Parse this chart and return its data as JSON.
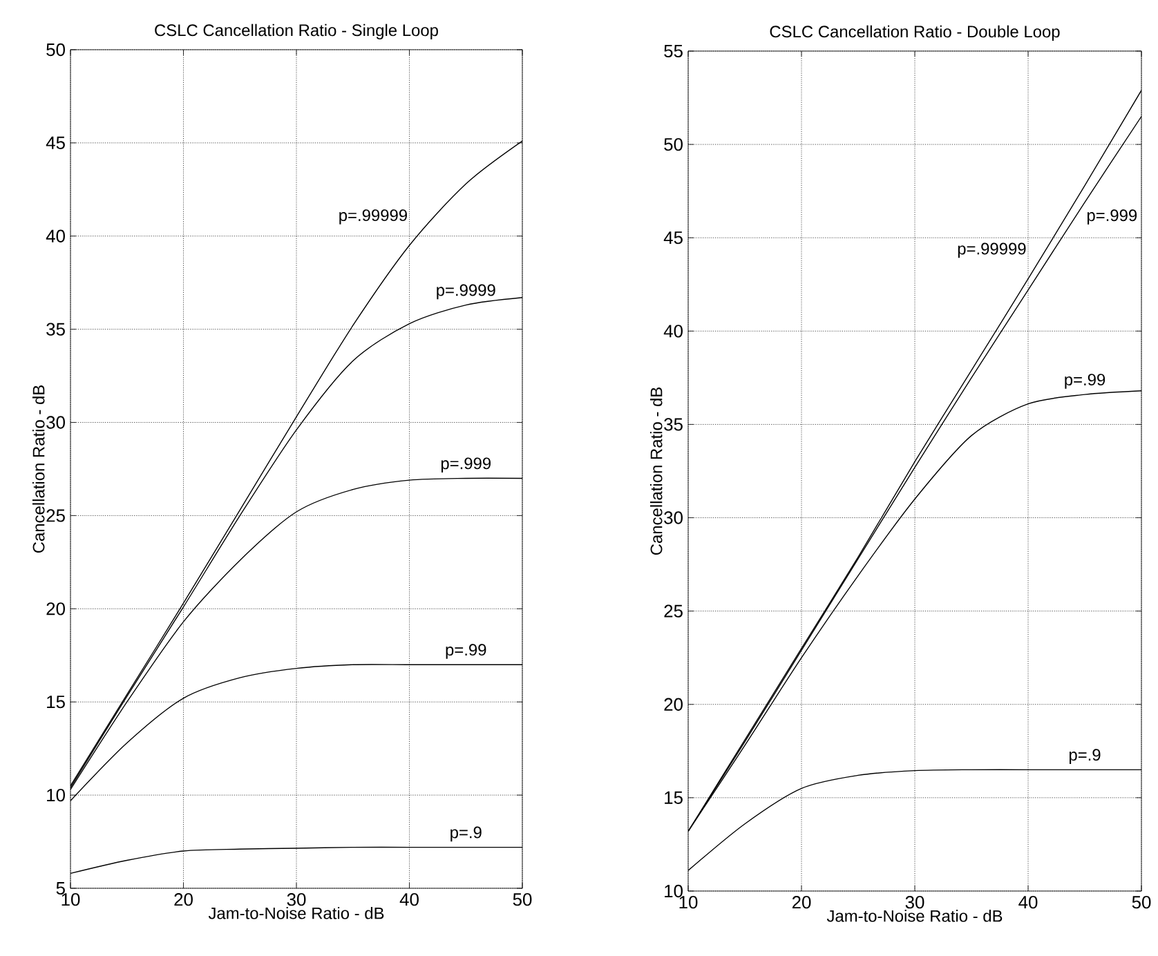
{
  "chart_data": [
    {
      "type": "line",
      "title": "CSLC Cancellation Ratio - Single Loop",
      "xlabel": "Jam-to-Noise Ratio - dB",
      "ylabel": "Cancellation Ratio - dB",
      "xlim": [
        10,
        50
      ],
      "ylim": [
        5,
        50
      ],
      "xticks": [
        10,
        20,
        30,
        40,
        50
      ],
      "yticks": [
        5,
        10,
        15,
        20,
        25,
        30,
        35,
        40,
        45,
        50
      ],
      "grid": true,
      "x": [
        10,
        15,
        20,
        25,
        30,
        35,
        40,
        45,
        50
      ],
      "series": [
        {
          "name": "p=.9",
          "color": "#000000",
          "values": [
            5.8,
            6.5,
            7.0,
            7.1,
            7.15,
            7.2,
            7.2,
            7.2,
            7.2
          ]
        },
        {
          "name": "p=.99",
          "color": "#000000",
          "values": [
            9.7,
            12.8,
            15.2,
            16.3,
            16.8,
            17.0,
            17.0,
            17.0,
            17.0
          ]
        },
        {
          "name": "p=.999",
          "color": "#000000",
          "values": [
            10.3,
            15.0,
            19.3,
            22.6,
            25.2,
            26.4,
            26.9,
            27.0,
            27.0
          ]
        },
        {
          "name": "p=.9999",
          "color": "#000000",
          "values": [
            10.4,
            15.3,
            20.1,
            25.0,
            29.6,
            33.3,
            35.3,
            36.3,
            36.7
          ]
        },
        {
          "name": "p=.99999",
          "color": "#000000",
          "values": [
            10.5,
            15.4,
            20.3,
            25.3,
            30.3,
            35.2,
            39.5,
            42.8,
            45.1
          ]
        }
      ]
    },
    {
      "type": "line",
      "title": "CSLC Cancellation Ratio - Double Loop",
      "xlabel": "Jam-to-Noise Ratio - dB",
      "ylabel": "Cancellation Ratio - dB",
      "xlim": [
        10,
        50
      ],
      "ylim": [
        10,
        55
      ],
      "xticks": [
        10,
        20,
        30,
        40,
        50
      ],
      "yticks": [
        10,
        15,
        20,
        25,
        30,
        35,
        40,
        45,
        50,
        55
      ],
      "grid": true,
      "x": [
        10,
        15,
        20,
        25,
        30,
        35,
        40,
        45,
        50
      ],
      "series": [
        {
          "name": "p=.9",
          "color": "#000000",
          "values": [
            11.1,
            13.6,
            15.5,
            16.2,
            16.45,
            16.5,
            16.5,
            16.5,
            16.5
          ]
        },
        {
          "name": "p=.99",
          "color": "#000000",
          "values": [
            13.2,
            17.8,
            22.5,
            26.9,
            31.0,
            34.4,
            36.1,
            36.6,
            36.8
          ]
        },
        {
          "name": "p=.999",
          "color": "#000000",
          "values": [
            13.2,
            18.0,
            22.9,
            27.8,
            32.7,
            37.5,
            42.2,
            46.9,
            51.5
          ]
        },
        {
          "name": "p=.99999",
          "color": "#000000",
          "values": [
            13.2,
            18.1,
            23.0,
            27.9,
            33.0,
            37.9,
            42.8,
            47.8,
            52.9
          ]
        }
      ]
    }
  ]
}
